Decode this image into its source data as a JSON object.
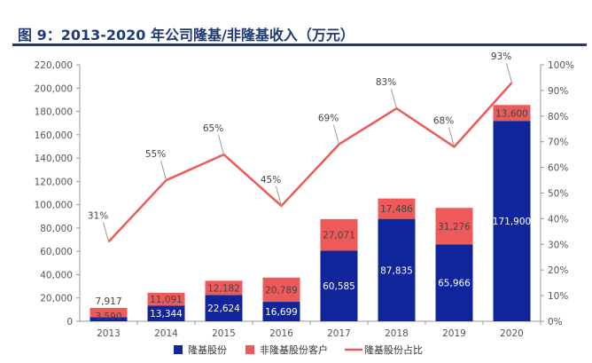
{
  "title": "图 9：2013-2020 年公司隆基/非隆基收入（万元）",
  "chart_data": {
    "type": "bar",
    "stacked": true,
    "title": "图 9：2013-2020 年公司隆基/非隆基收入（万元）",
    "categories": [
      "2013",
      "2014",
      "2015",
      "2016",
      "2017",
      "2018",
      "2019",
      "2020"
    ],
    "series": [
      {
        "name": "隆基股份",
        "type": "bar",
        "color": "#10259a",
        "values": [
          3590,
          13344,
          22624,
          16699,
          60585,
          87835,
          65966,
          171900
        ],
        "labels": [
          "3,590",
          "13,344",
          "22,624",
          "16,699",
          "60,585",
          "87,835",
          "65,966",
          "171,900"
        ]
      },
      {
        "name": "非隆基股份客户",
        "type": "bar",
        "color": "#ee5a5a",
        "values": [
          7917,
          11091,
          12182,
          20789,
          27071,
          17486,
          31276,
          13600
        ],
        "labels": [
          "7,917",
          "11,091",
          "12,182",
          "20,789",
          "27,071",
          "17,486",
          "31,276",
          "13,600"
        ]
      },
      {
        "name": "隆基股份占比",
        "type": "line",
        "axis": "right",
        "color": "#ee5a5a",
        "values": [
          31,
          55,
          65,
          45,
          69,
          83,
          68,
          93
        ],
        "labels": [
          "31%",
          "55%",
          "65%",
          "45%",
          "69%",
          "83%",
          "68%",
          "93%"
        ]
      }
    ],
    "y_left": {
      "min": 0,
      "max": 220000,
      "step": 20000,
      "tick_labels": [
        "0",
        "20,000",
        "40,000",
        "60,000",
        "80,000",
        "100,000",
        "120,000",
        "140,000",
        "160,000",
        "180,000",
        "200,000",
        "220,000"
      ]
    },
    "y_right": {
      "min": 0,
      "max": 100,
      "step": 10,
      "tick_labels": [
        "0%",
        "10%",
        "20%",
        "30%",
        "40%",
        "50%",
        "60%",
        "70%",
        "80%",
        "90%",
        "100%"
      ]
    },
    "legend": [
      "隆基股份",
      "非隆基股份客户",
      "隆基股份占比"
    ],
    "legend_position": "bottom",
    "grid": false
  }
}
